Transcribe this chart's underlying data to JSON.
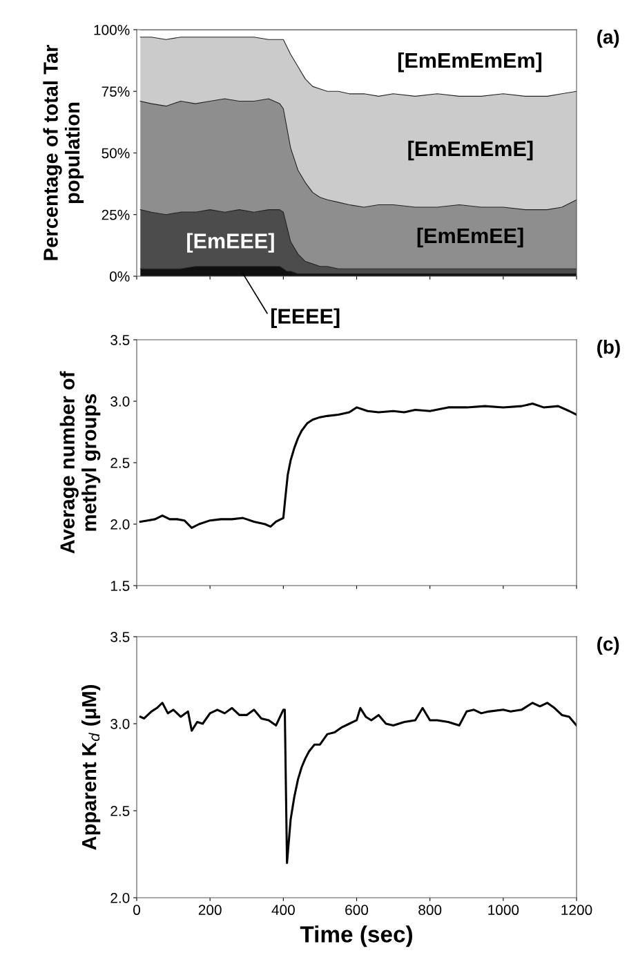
{
  "chart_data": [
    {
      "type": "area",
      "stacked": true,
      "ylabel": "Percentage of total Tar\npopulation",
      "x": [
        10,
        40,
        80,
        120,
        160,
        200,
        240,
        280,
        320,
        360,
        390,
        400,
        410,
        420,
        440,
        460,
        480,
        500,
        520,
        550,
        580,
        620,
        660,
        700,
        760,
        820,
        880,
        940,
        1000,
        1060,
        1120,
        1160,
        1200
      ],
      "series": [
        {
          "color": "#101010",
          "values": [
            3,
            3,
            3,
            3,
            4,
            4,
            4,
            4,
            4,
            4,
            4,
            3,
            2,
            2,
            1,
            1,
            1,
            1,
            1,
            1,
            1,
            1,
            1,
            1,
            1,
            1,
            1,
            1,
            1,
            1,
            1,
            1,
            1
          ]
        },
        {
          "name": "[EmEEE]",
          "color": "#4c4c4c",
          "values": [
            24,
            23,
            22,
            23,
            22,
            23,
            22,
            23,
            22,
            23,
            23,
            23,
            18,
            12,
            8,
            5,
            4,
            3,
            3,
            2,
            2,
            2,
            2,
            2,
            2,
            2,
            2,
            2,
            2,
            2,
            2,
            2,
            2
          ]
        },
        {
          "name": "[EmEmEE]",
          "color": "#8e8e8e",
          "values": [
            44,
            44,
            44,
            45,
            44,
            44,
            46,
            44,
            45,
            45,
            43,
            42,
            40,
            38,
            34,
            32,
            29,
            28,
            27,
            27,
            26,
            25,
            26,
            26,
            25,
            25,
            26,
            25,
            25,
            24,
            24,
            25,
            28
          ]
        },
        {
          "name": "[EmEmEmE]",
          "color": "#cbcbcb",
          "values": [
            26,
            27,
            27,
            26,
            27,
            26,
            25,
            26,
            26,
            24,
            26,
            28,
            33,
            38,
            42,
            42,
            43,
            44,
            44,
            45,
            45,
            46,
            44,
            45,
            45,
            46,
            44,
            45,
            46,
            46,
            46,
            46,
            44
          ]
        },
        {
          "name": "[EmEmEmEm]",
          "color": "#ffffff",
          "values": [
            3,
            3,
            4,
            3,
            3,
            3,
            3,
            3,
            3,
            4,
            4,
            4,
            7,
            10,
            15,
            20,
            23,
            24,
            25,
            25,
            26,
            26,
            27,
            26,
            27,
            26,
            27,
            27,
            26,
            27,
            27,
            26,
            25
          ]
        }
      ],
      "annotations": [
        "(a)",
        {
          "text": "[EEEE]",
          "x": 290,
          "y": 1
        }
      ],
      "xlim": [
        0,
        1200
      ],
      "xticks": [
        0,
        200,
        400,
        600,
        800,
        1000,
        1200
      ],
      "ylim": [
        0,
        100
      ],
      "yticks": [
        {
          "value": 0,
          "label": "0%"
        },
        {
          "value": 25,
          "label": "25%"
        },
        {
          "value": 50,
          "label": "50%"
        },
        {
          "value": 75,
          "label": "75%"
        },
        {
          "value": 100,
          "label": "100%"
        }
      ],
      "tick_labels": "y",
      "grid": false,
      "legend": false
    },
    {
      "type": "line",
      "ylabel": "Average number of\nmethyl groups",
      "x": [
        10,
        30,
        50,
        70,
        90,
        110,
        130,
        150,
        170,
        200,
        230,
        260,
        290,
        320,
        350,
        365,
        380,
        400,
        405,
        412,
        420,
        430,
        440,
        450,
        465,
        480,
        500,
        520,
        550,
        580,
        600,
        630,
        660,
        700,
        730,
        760,
        800,
        850,
        900,
        950,
        1000,
        1050,
        1080,
        1110,
        1150,
        1180,
        1200
      ],
      "series": [
        {
          "color": "#000000",
          "values": [
            2.02,
            2.03,
            2.04,
            2.07,
            2.04,
            2.04,
            2.03,
            1.97,
            2.0,
            2.03,
            2.04,
            2.04,
            2.05,
            2.02,
            2.0,
            1.98,
            2.02,
            2.05,
            2.2,
            2.4,
            2.52,
            2.62,
            2.7,
            2.76,
            2.82,
            2.85,
            2.87,
            2.88,
            2.89,
            2.91,
            2.95,
            2.92,
            2.91,
            2.92,
            2.91,
            2.93,
            2.92,
            2.95,
            2.95,
            2.96,
            2.95,
            2.96,
            2.98,
            2.95,
            2.96,
            2.92,
            2.89
          ]
        }
      ],
      "annotations": [
        "(b)"
      ],
      "xlim": [
        0,
        1200
      ],
      "xticks": [
        0,
        200,
        400,
        600,
        800,
        1000,
        1200
      ],
      "ylim": [
        1.5,
        3.5
      ],
      "yticks": [
        {
          "value": 1.5,
          "label": "1.5"
        },
        {
          "value": 2.0,
          "label": "2.0"
        },
        {
          "value": 2.5,
          "label": "2.5"
        },
        {
          "value": 3.0,
          "label": "3.0"
        },
        {
          "value": 3.5,
          "label": "3.5"
        }
      ],
      "tick_labels": "y",
      "grid": false,
      "legend": false,
      "marker": "none",
      "line_style": "solid"
    },
    {
      "type": "line",
      "ylabel": "Apparent K$_{d}$ (μM)",
      "xlabel": "Time (sec)",
      "x": [
        10,
        20,
        40,
        55,
        70,
        85,
        100,
        120,
        140,
        150,
        165,
        180,
        200,
        220,
        240,
        260,
        280,
        300,
        320,
        340,
        360,
        380,
        400,
        404,
        410,
        420,
        430,
        440,
        450,
        460,
        470,
        485,
        500,
        520,
        540,
        560,
        580,
        600,
        610,
        625,
        640,
        660,
        680,
        700,
        730,
        760,
        780,
        800,
        820,
        850,
        880,
        900,
        920,
        940,
        960,
        1000,
        1020,
        1050,
        1080,
        1100,
        1120,
        1140,
        1160,
        1180,
        1200
      ],
      "series": [
        {
          "color": "#000000",
          "values": [
            3.04,
            3.03,
            3.07,
            3.09,
            3.12,
            3.06,
            3.08,
            3.04,
            3.07,
            2.96,
            3.01,
            3.0,
            3.06,
            3.08,
            3.06,
            3.09,
            3.05,
            3.05,
            3.08,
            3.03,
            3.02,
            2.99,
            3.08,
            3.08,
            2.2,
            2.45,
            2.58,
            2.68,
            2.75,
            2.8,
            2.84,
            2.88,
            2.88,
            2.94,
            2.95,
            2.98,
            3.0,
            3.02,
            3.09,
            3.04,
            3.02,
            3.05,
            3.0,
            2.99,
            3.01,
            3.02,
            3.09,
            3.02,
            3.02,
            3.01,
            2.99,
            3.07,
            3.08,
            3.06,
            3.07,
            3.08,
            3.07,
            3.08,
            3.12,
            3.1,
            3.12,
            3.09,
            3.05,
            3.04,
            2.99
          ]
        }
      ],
      "annotations": [
        "(c)"
      ],
      "xlim": [
        0,
        1200
      ],
      "xticks": [
        0,
        200,
        400,
        600,
        800,
        1000,
        1200
      ],
      "ylim": [
        2.0,
        3.5
      ],
      "yticks": [
        {
          "value": 2.0,
          "label": "2.0"
        },
        {
          "value": 2.5,
          "label": "2.5"
        },
        {
          "value": 3.0,
          "label": "3.0"
        },
        {
          "value": 3.5,
          "label": "3.5"
        }
      ],
      "grid": false,
      "legend": false,
      "marker": "none",
      "line_style": "solid"
    }
  ]
}
